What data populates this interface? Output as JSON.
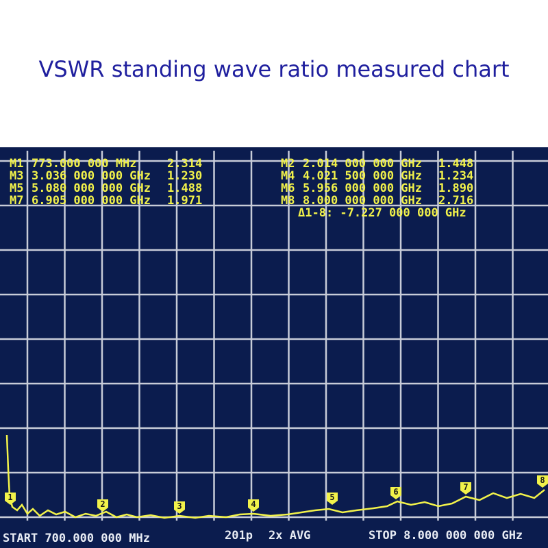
{
  "title": "VSWR standing wave ratio measured chart",
  "markers": [
    {
      "label": "M1",
      "freq": "773.000 000 MHz",
      "value": "2.314",
      "flag": "1"
    },
    {
      "label": "M2",
      "freq": "2.014 000 000 GHz",
      "value": "1.448",
      "flag": "2"
    },
    {
      "label": "M3",
      "freq": "3.036 000 000 GHz",
      "value": "1.230",
      "flag": "3"
    },
    {
      "label": "M4",
      "freq": "4.021 500 000 GHz",
      "value": "1.234",
      "flag": "4"
    },
    {
      "label": "M5",
      "freq": "5.080 000 000 GHz",
      "value": "1.488",
      "flag": "5"
    },
    {
      "label": "M6",
      "freq": "5.956 000 000 GHz",
      "value": "1.890",
      "flag": "6"
    },
    {
      "label": "M7",
      "freq": "6.905 000 000 GHz",
      "value": "1.971",
      "flag": "7"
    },
    {
      "label": "M8",
      "freq": "8.000 000 000 GHz",
      "value": "2.716",
      "flag": "8"
    }
  ],
  "delta": "Δ1-8: -7.227 000 000 GHz",
  "footer": {
    "start": "START 700.000 000 MHz",
    "points": "201p",
    "avg": "2x AVG",
    "stop": "STOP 8.000 000 000 GHz"
  }
}
